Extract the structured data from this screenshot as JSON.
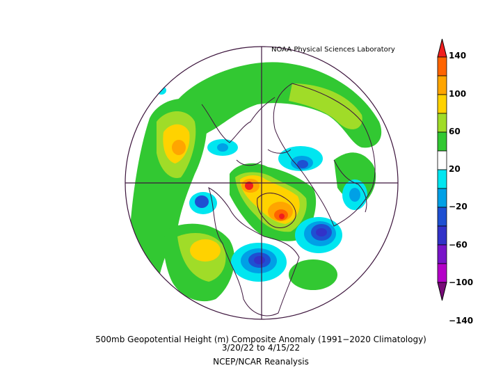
{
  "header": {
    "lab": "NOAA Physical Sciences Laboratory"
  },
  "caption": {
    "line1": "500mb Geopotential Height (m) Composite Anomaly (1991−2020 Climatology)",
    "line2": "3/20/22   to 4/15/22",
    "line3": "NCEP/NCAR Reanalysis"
  },
  "colorbar": {
    "labels": [
      "140",
      "100",
      "60",
      "20",
      "−20",
      "−60",
      "−100",
      "−140"
    ],
    "colors": [
      "#f01e1e",
      "#ff6400",
      "#ffa500",
      "#ffd200",
      "#a0dc28",
      "#32c832",
      "#ffffff",
      "#00e6f0",
      "#00a0e6",
      "#1e50d2",
      "#3232c8",
      "#7814c8",
      "#b400c8",
      "#780a78"
    ]
  },
  "map": {
    "projection": "north polar stereographic",
    "palette": {
      "green": "#32c832",
      "lime": "#a0dc28",
      "yellow": "#ffd200",
      "orange": "#ffa500",
      "deep_orange": "#ff6400",
      "red": "#f01e1e",
      "cyan": "#00e6f0",
      "light_blue": "#00a0e6",
      "blue": "#1e50d2",
      "dark_blue": "#3232c8",
      "outline": "#3c143c"
    }
  }
}
